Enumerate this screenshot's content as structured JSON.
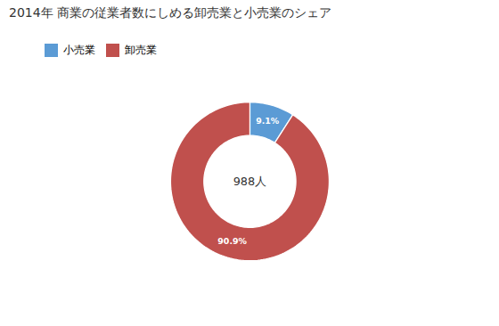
{
  "chart_data": {
    "type": "pie",
    "title": "2014年 商業の従業者数にしめる卸売業と小売業のシェア",
    "categories": [
      "小売業",
      "卸売業"
    ],
    "values": [
      9.1,
      90.9
    ],
    "value_labels": [
      "9.1%",
      "90.9%"
    ],
    "colors": [
      "#5B9BD5",
      "#C0504D"
    ],
    "data_labels": true,
    "annotations": [
      "988人"
    ],
    "legend": "top"
  }
}
